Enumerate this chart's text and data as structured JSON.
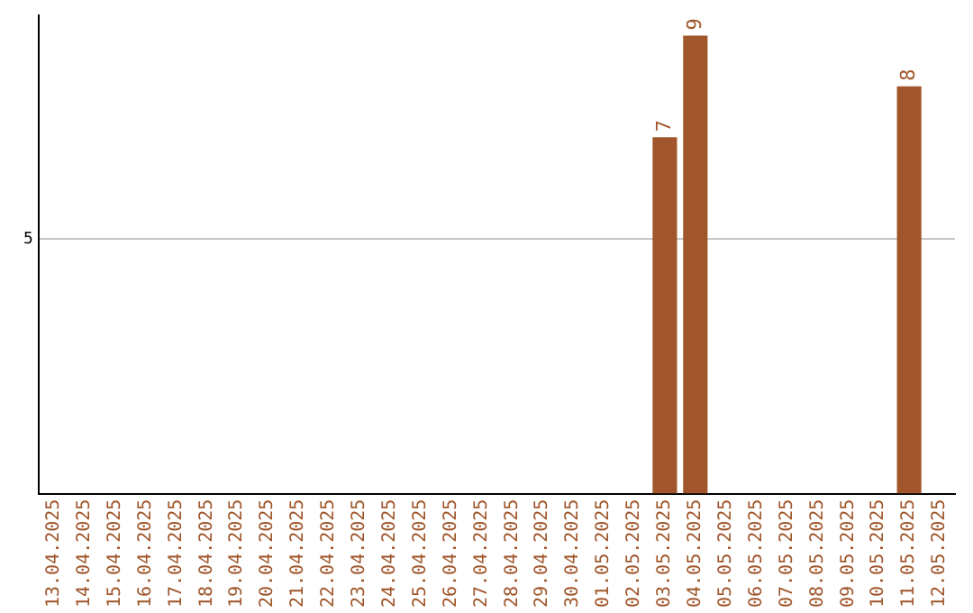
{
  "chart_data": {
    "type": "bar",
    "categories": [
      "13.04.2025",
      "14.04.2025",
      "15.04.2025",
      "16.04.2025",
      "17.04.2025",
      "18.04.2025",
      "19.04.2025",
      "20.04.2025",
      "21.04.2025",
      "22.04.2025",
      "23.04.2025",
      "24.04.2025",
      "25.04.2025",
      "26.04.2025",
      "27.04.2025",
      "28.04.2025",
      "29.04.2025",
      "30.04.2025",
      "01.05.2025",
      "02.05.2025",
      "03.05.2025",
      "04.05.2025",
      "05.05.2025",
      "06.05.2025",
      "07.05.2025",
      "08.05.2025",
      "09.05.2025",
      "10.05.2025",
      "11.05.2025",
      "12.05.2025"
    ],
    "values": [
      null,
      null,
      null,
      null,
      null,
      null,
      null,
      null,
      null,
      null,
      null,
      null,
      null,
      null,
      null,
      null,
      null,
      null,
      null,
      null,
      7,
      9,
      null,
      null,
      null,
      null,
      null,
      null,
      8,
      null
    ],
    "data_labels": true,
    "color": "#a0562a",
    "ylim": [
      0,
      9.4
    ],
    "yticks": [
      5
    ],
    "grid": "y",
    "legend": false
  }
}
